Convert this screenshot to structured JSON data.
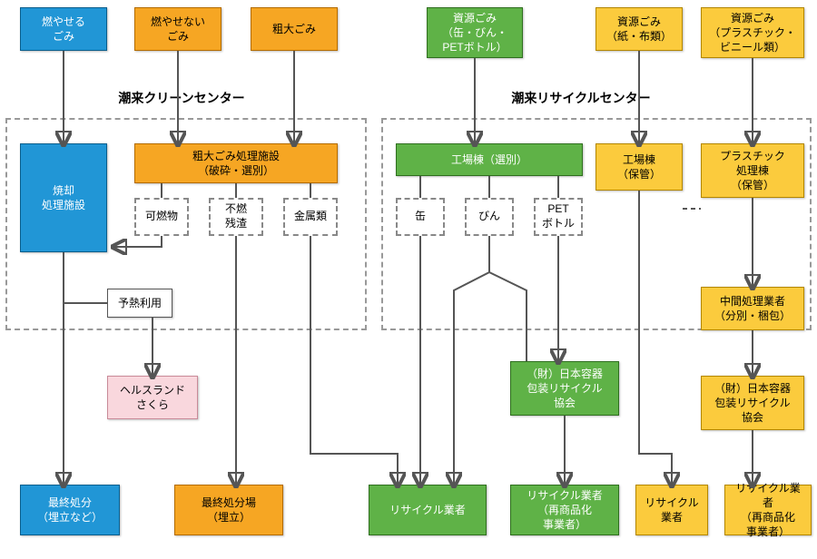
{
  "type": "flowchart",
  "centers": {
    "clean": "潮来クリーンセンター",
    "recycle": "潮来リサイクルセンター"
  },
  "top": {
    "burnable": "燃やせる\nごみ",
    "nonburnable": "燃やせない\nごみ",
    "bulky": "粗大ごみ",
    "cans": "資源ごみ\n（缶・びん・\nPETボトル）",
    "paper": "資源ごみ\n（紙・布類）",
    "plastic": "資源ごみ\n（プラスチック・\nビニール類）"
  },
  "mid": {
    "incinerator": "焼却\n処理施設",
    "bulky_facility": "粗大ごみ処理施設\n（破砕・選別）",
    "combustible": "可燃物",
    "residue": "不燃\n残渣",
    "metal": "金属類",
    "preheat": "予熱利用",
    "sorting_plant": "工場棟（選別）",
    "can": "缶",
    "bottle": "びん",
    "pet": "PET\nボトル",
    "storage_plant": "工場棟\n（保管）",
    "plastic_plant": "プラスチック\n処理棟\n（保管）",
    "intermediate": "中間処理業者\n（分別・梱包）"
  },
  "lower": {
    "healthland": "ヘルスランド\nさくら",
    "jcpra1": "（財）日本容器\n包装リサイクル\n協会",
    "jcpra2": "（財）日本容器\n包装リサイクル\n協会"
  },
  "bottom": {
    "final_blue": "最終処分\n（埋立など）",
    "final_orange": "最終処分場\n（埋立）",
    "recycler_green1": "リサイクル業者",
    "recycler_green2": "リサイクル業者\n（再商品化\n事業者）",
    "recycler_yellow1": "リサイクル\n業者",
    "recycler_yellow2": "リサイクル業者\n（再商品化\n事業者）"
  },
  "colors": {
    "blue": "#2196d6",
    "orange": "#f6a623",
    "green": "#5fb247",
    "yellow": "#fbcb3d",
    "pink": "#f9d7dd",
    "border_dash": "#999999",
    "arrow": "#555555",
    "bg": "#ffffff"
  }
}
